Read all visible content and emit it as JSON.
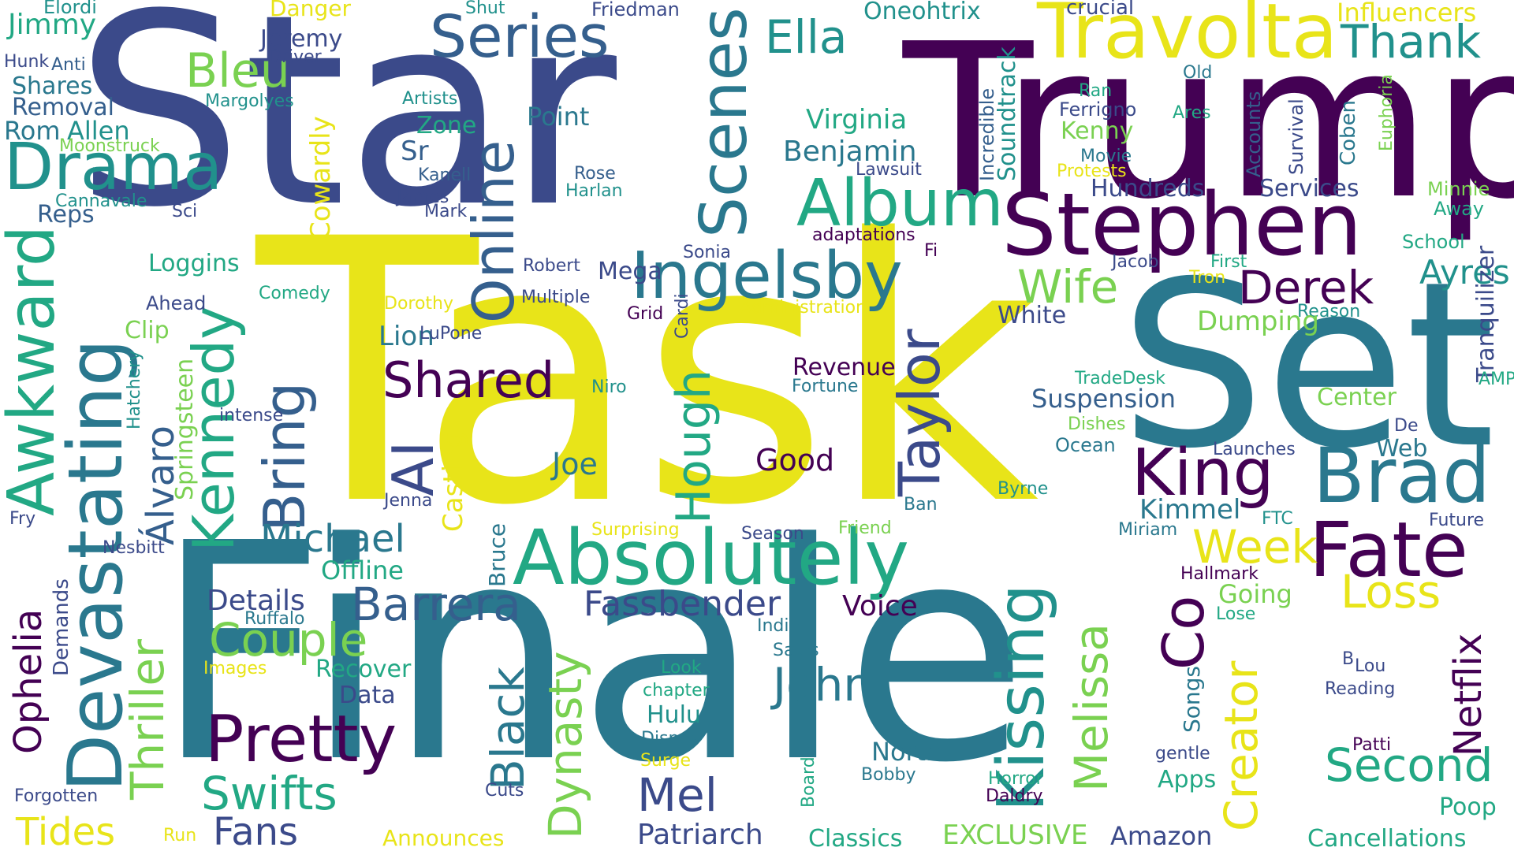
{
  "palette": {
    "purple": "#440154",
    "indigo": "#3b4a8a",
    "blue": "#355f8d",
    "teal": "#2a788e",
    "green": "#21918c",
    "sea": "#22a884",
    "lime": "#7ad151",
    "yellow": "#e8e419"
  },
  "words": [
    {
      "text": "Star",
      "color": "indigo"
    },
    {
      "text": "Task",
      "color": "yellow"
    },
    {
      "text": "Trump",
      "color": "purple"
    },
    {
      "text": "Set",
      "color": "teal"
    },
    {
      "text": "Finale",
      "color": "teal"
    },
    {
      "text": "Travolta",
      "color": "yellow"
    },
    {
      "text": "Thank",
      "color": "green"
    },
    {
      "text": "Series",
      "color": "blue"
    },
    {
      "text": "Ella",
      "color": "green"
    },
    {
      "text": "Scenes",
      "color": "teal"
    },
    {
      "text": "Bleu",
      "color": "lime"
    },
    {
      "text": "Drama",
      "color": "green"
    },
    {
      "text": "Album",
      "color": "sea"
    },
    {
      "text": "Stephen",
      "color": "purple"
    },
    {
      "text": "Online",
      "color": "blue"
    },
    {
      "text": "Ingelsby",
      "color": "teal"
    },
    {
      "text": "Derek",
      "color": "purple"
    },
    {
      "text": "Wife",
      "color": "lime"
    },
    {
      "text": "Ayres",
      "color": "green"
    },
    {
      "text": "Awkward",
      "color": "sea"
    },
    {
      "text": "Devastating",
      "color": "teal"
    },
    {
      "text": "Kennedy",
      "color": "sea"
    },
    {
      "text": "Bring",
      "color": "blue"
    },
    {
      "text": "AI",
      "color": "indigo"
    },
    {
      "text": "Taylor",
      "color": "indigo"
    },
    {
      "text": "Shared",
      "color": "purple"
    },
    {
      "text": "Hough",
      "color": "sea"
    },
    {
      "text": "Brad",
      "color": "teal"
    },
    {
      "text": "King",
      "color": "purple"
    },
    {
      "text": "Fate",
      "color": "purple"
    },
    {
      "text": "Kissing",
      "color": "green"
    },
    {
      "text": "Absolutely",
      "color": "sea"
    },
    {
      "text": "Co",
      "color": "purple"
    },
    {
      "text": "Creator",
      "color": "yellow"
    },
    {
      "text": "Week",
      "color": "yellow"
    },
    {
      "text": "Loss",
      "color": "yellow"
    },
    {
      "text": "Netflix",
      "color": "purple"
    },
    {
      "text": "Second",
      "color": "sea"
    },
    {
      "text": "Melissa",
      "color": "lime"
    },
    {
      "text": "Barrera",
      "color": "blue"
    },
    {
      "text": "Fassbender",
      "color": "indigo"
    },
    {
      "text": "Michael",
      "color": "teal"
    },
    {
      "text": "Couple",
      "color": "lime"
    },
    {
      "text": "Pretty",
      "color": "purple"
    },
    {
      "text": "Swifts",
      "color": "sea"
    },
    {
      "text": "Fans",
      "color": "indigo"
    },
    {
      "text": "Tides",
      "color": "yellow"
    },
    {
      "text": "Ophelia",
      "color": "purple"
    },
    {
      "text": "Thriller",
      "color": "lime"
    },
    {
      "text": "Álvaro",
      "color": "blue"
    },
    {
      "text": "Black",
      "color": "teal"
    },
    {
      "text": "Dynasty",
      "color": "lime"
    },
    {
      "text": "John",
      "color": "teal"
    },
    {
      "text": "Mel",
      "color": "indigo"
    },
    {
      "text": "Patriarch",
      "color": "indigo"
    },
    {
      "text": "Jimmy",
      "color": "sea"
    },
    {
      "text": "Elordi",
      "color": "green"
    },
    {
      "text": "Danger",
      "color": "yellow"
    },
    {
      "text": "Shut",
      "color": "green"
    },
    {
      "text": "Friedman",
      "color": "indigo"
    },
    {
      "text": "Oneohtrix",
      "color": "green"
    },
    {
      "text": "crucial",
      "color": "indigo"
    },
    {
      "text": "Influencers",
      "color": "yellow"
    },
    {
      "text": "Jeremy",
      "color": "indigo"
    },
    {
      "text": "Driver",
      "color": "indigo"
    },
    {
      "text": "Hunk",
      "color": "indigo"
    },
    {
      "text": "Anti",
      "color": "blue"
    },
    {
      "text": "Shares",
      "color": "teal"
    },
    {
      "text": "Removal",
      "color": "blue"
    },
    {
      "text": "Margolyes",
      "color": "green"
    },
    {
      "text": "Artists",
      "color": "green"
    },
    {
      "text": "Rom",
      "color": "teal"
    },
    {
      "text": "Allen",
      "color": "green"
    },
    {
      "text": "Moonstruck",
      "color": "lime"
    },
    {
      "text": "Zone",
      "color": "sea"
    },
    {
      "text": "Point",
      "color": "teal"
    },
    {
      "text": "Virginia",
      "color": "sea"
    },
    {
      "text": "Benjamin",
      "color": "teal"
    },
    {
      "text": "Sr",
      "color": "blue"
    },
    {
      "text": "Kanell",
      "color": "blue"
    },
    {
      "text": "Rose",
      "color": "blue"
    },
    {
      "text": "Harlan",
      "color": "green"
    },
    {
      "text": "James",
      "color": "indigo"
    },
    {
      "text": "Mark",
      "color": "indigo"
    },
    {
      "text": "Cannavale",
      "color": "green"
    },
    {
      "text": "Reps",
      "color": "blue"
    },
    {
      "text": "Sci",
      "color": "indigo"
    },
    {
      "text": "Cowardly",
      "color": "yellow"
    },
    {
      "text": "Loggins",
      "color": "sea"
    },
    {
      "text": "Incredible",
      "color": "blue"
    },
    {
      "text": "Soundtrack",
      "color": "green"
    },
    {
      "text": "Old",
      "color": "teal"
    },
    {
      "text": "Ran",
      "color": "sea"
    },
    {
      "text": "Ferrigno",
      "color": "indigo"
    },
    {
      "text": "Ares",
      "color": "sea"
    },
    {
      "text": "Kenny",
      "color": "lime"
    },
    {
      "text": "Movie",
      "color": "teal"
    },
    {
      "text": "Protests",
      "color": "yellow"
    },
    {
      "text": "Lawsuit",
      "color": "indigo"
    },
    {
      "text": "Hundreds",
      "color": "indigo"
    },
    {
      "text": "Services",
      "color": "indigo"
    },
    {
      "text": "Accounts",
      "color": "blue"
    },
    {
      "text": "Survival",
      "color": "indigo"
    },
    {
      "text": "Coben",
      "color": "teal"
    },
    {
      "text": "Euphoria",
      "color": "lime"
    },
    {
      "text": "Minnie",
      "color": "lime"
    },
    {
      "text": "Away",
      "color": "sea"
    },
    {
      "text": "School",
      "color": "sea"
    },
    {
      "text": "Tranquilizer",
      "color": "indigo"
    },
    {
      "text": "adaptations",
      "color": "purple"
    },
    {
      "text": "Fi",
      "color": "purple"
    },
    {
      "text": "Sonia",
      "color": "indigo"
    },
    {
      "text": "Robert",
      "color": "indigo"
    },
    {
      "text": "Mega",
      "color": "indigo"
    },
    {
      "text": "Multiple",
      "color": "indigo"
    },
    {
      "text": "Jacob",
      "color": "indigo"
    },
    {
      "text": "First",
      "color": "sea"
    },
    {
      "text": "Tron",
      "color": "yellow"
    },
    {
      "text": "Reason",
      "color": "green"
    },
    {
      "text": "Dorothy",
      "color": "yellow"
    },
    {
      "text": "Ahead",
      "color": "indigo"
    },
    {
      "text": "Comedy",
      "color": "sea"
    },
    {
      "text": "Grid",
      "color": "purple"
    },
    {
      "text": "Cardi",
      "color": "indigo"
    },
    {
      "text": "Administration",
      "color": "yellow"
    },
    {
      "text": "White",
      "color": "indigo"
    },
    {
      "text": "Dumping",
      "color": "lime"
    },
    {
      "text": "Clip",
      "color": "lime"
    },
    {
      "text": "Lion",
      "color": "teal"
    },
    {
      "text": "LuPone",
      "color": "indigo"
    },
    {
      "text": "Revenue",
      "color": "purple"
    },
    {
      "text": "Fortune",
      "color": "teal"
    },
    {
      "text": "Hatchery",
      "color": "green"
    },
    {
      "text": "Springsteen",
      "color": "lime"
    },
    {
      "text": "intense",
      "color": "indigo"
    },
    {
      "text": "Niro",
      "color": "green"
    },
    {
      "text": "TradeDesk",
      "color": "sea"
    },
    {
      "text": "Suspension",
      "color": "blue"
    },
    {
      "text": "Center",
      "color": "lime"
    },
    {
      "text": "AMP",
      "color": "sea"
    },
    {
      "text": "Casting",
      "color": "yellow"
    },
    {
      "text": "Joe",
      "color": "teal"
    },
    {
      "text": "Good",
      "color": "purple"
    },
    {
      "text": "Dishes",
      "color": "lime"
    },
    {
      "text": "De",
      "color": "indigo"
    },
    {
      "text": "Ocean",
      "color": "teal"
    },
    {
      "text": "Launches",
      "color": "indigo"
    },
    {
      "text": "Web",
      "color": "teal"
    },
    {
      "text": "Byrne",
      "color": "green"
    },
    {
      "text": "Ban",
      "color": "teal"
    },
    {
      "text": "Jenna",
      "color": "indigo"
    },
    {
      "text": "Fry",
      "color": "indigo"
    },
    {
      "text": "Kimmel",
      "color": "teal"
    },
    {
      "text": "Bruce",
      "color": "teal"
    },
    {
      "text": "Surprising",
      "color": "yellow"
    },
    {
      "text": "Season",
      "color": "indigo"
    },
    {
      "text": "Friend",
      "color": "lime"
    },
    {
      "text": "Miriam",
      "color": "teal"
    },
    {
      "text": "FTC",
      "color": "green"
    },
    {
      "text": "Future",
      "color": "indigo"
    },
    {
      "text": "Nesbitt",
      "color": "indigo"
    },
    {
      "text": "Offline",
      "color": "sea"
    },
    {
      "text": "Hallmark",
      "color": "purple"
    },
    {
      "text": "Going",
      "color": "lime"
    },
    {
      "text": "Lose",
      "color": "sea"
    },
    {
      "text": "Details",
      "color": "indigo"
    },
    {
      "text": "Ruffalo",
      "color": "teal"
    },
    {
      "text": "Demands",
      "color": "indigo"
    },
    {
      "text": "Voice",
      "color": "purple"
    },
    {
      "text": "Indie",
      "color": "teal"
    },
    {
      "text": "Images",
      "color": "yellow"
    },
    {
      "text": "Recover",
      "color": "sea"
    },
    {
      "text": "Sales",
      "color": "teal"
    },
    {
      "text": "Look",
      "color": "sea"
    },
    {
      "text": "chapter",
      "color": "sea"
    },
    {
      "text": "Data",
      "color": "indigo"
    },
    {
      "text": "Hulu",
      "color": "green"
    },
    {
      "text": "Disney",
      "color": "teal"
    },
    {
      "text": "Surge",
      "color": "yellow"
    },
    {
      "text": "Songs",
      "color": "teal"
    },
    {
      "text": "gentle",
      "color": "indigo"
    },
    {
      "text": "B",
      "color": "indigo"
    },
    {
      "text": "Lou",
      "color": "indigo"
    },
    {
      "text": "Reading",
      "color": "indigo"
    },
    {
      "text": "North",
      "color": "teal"
    },
    {
      "text": "Bobby",
      "color": "teal"
    },
    {
      "text": "Board",
      "color": "sea"
    },
    {
      "text": "Patti",
      "color": "purple"
    },
    {
      "text": "Horror",
      "color": "sea"
    },
    {
      "text": "Daldry",
      "color": "purple"
    },
    {
      "text": "Apps",
      "color": "sea"
    },
    {
      "text": "Poop",
      "color": "sea"
    },
    {
      "text": "Forgotten",
      "color": "indigo"
    },
    {
      "text": "Cuts",
      "color": "indigo"
    },
    {
      "text": "Run",
      "color": "yellow"
    },
    {
      "text": "Announces",
      "color": "yellow"
    },
    {
      "text": "Classics",
      "color": "sea"
    },
    {
      "text": "EXCLUSIVE",
      "color": "lime"
    },
    {
      "text": "Amazon",
      "color": "indigo"
    },
    {
      "text": "Cancellations",
      "color": "sea"
    }
  ]
}
